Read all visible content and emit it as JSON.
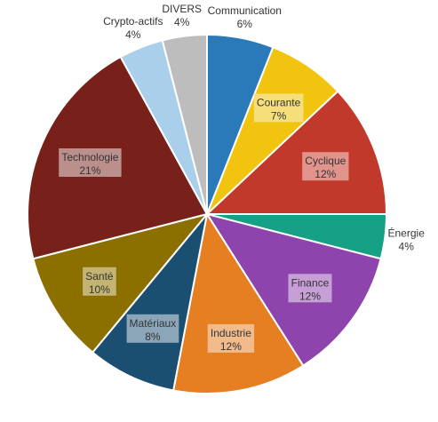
{
  "chart_data": {
    "type": "pie",
    "title": "",
    "slices": [
      {
        "label": "Communication",
        "value": 6,
        "value_label": "6%",
        "color": "#2a7ab9",
        "label_pos": "outside",
        "box": null
      },
      {
        "label": "Courante",
        "value": 7,
        "value_label": "7%",
        "color": "#f1c40f",
        "label_pos": "inside",
        "box": "#f6de7a"
      },
      {
        "label": "Cyclique",
        "value": 12,
        "value_label": "12%",
        "color": "#c0392b",
        "label_pos": "inside",
        "box": "#e0948c"
      },
      {
        "label": "Énergie",
        "value": 4,
        "value_label": "4%",
        "color": "#16a085",
        "label_pos": "outside",
        "box": null
      },
      {
        "label": "Finance",
        "value": 12,
        "value_label": "12%",
        "color": "#8e44ad",
        "label_pos": "inside",
        "box": "#c69fd6"
      },
      {
        "label": "Industrie",
        "value": 12,
        "value_label": "12%",
        "color": "#e67e22",
        "label_pos": "inside",
        "box": "#f2bb8c"
      },
      {
        "label": "Matériaux",
        "value": 8,
        "value_label": "8%",
        "color": "#1b4f72",
        "label_pos": "inside",
        "box": "#8ba6b9"
      },
      {
        "label": "Santé",
        "value": 10,
        "value_label": "10%",
        "color": "#8b7000",
        "label_pos": "inside",
        "box": "#c4b473"
      },
      {
        "label": "Technologie",
        "value": 21,
        "value_label": "21%",
        "color": "#78201a",
        "label_pos": "inside",
        "box": "#bb8f8c"
      },
      {
        "label": "Crypto-actifs",
        "value": 4,
        "value_label": "4%",
        "color": "#a9cfea",
        "label_pos": "outside",
        "box": null
      },
      {
        "label": "DIVERS",
        "value": 4,
        "value_label": "4%",
        "color": "#bdbdbd",
        "label_pos": "outside",
        "box": null
      }
    ]
  }
}
